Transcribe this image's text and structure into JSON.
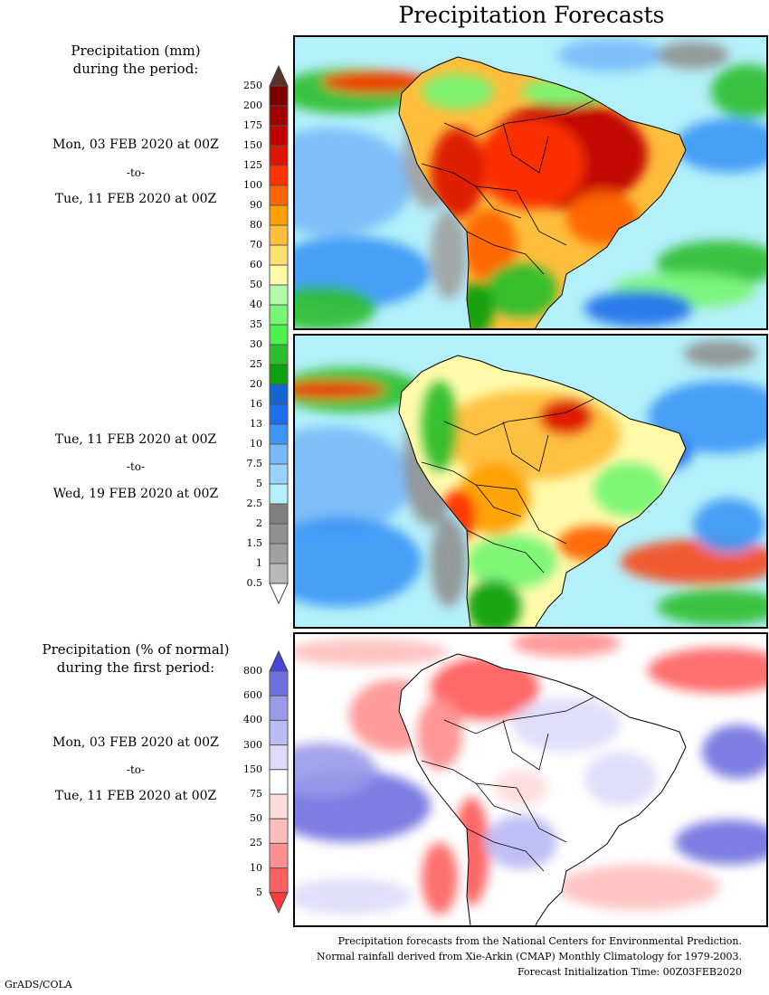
{
  "title": "Precipitation Forecasts",
  "legend_mm": {
    "heading": [
      "Precipitation (mm)",
      "during the period:"
    ],
    "labels": [
      "250",
      "200",
      "175",
      "150",
      "125",
      "100",
      "90",
      "80",
      "70",
      "60",
      "50",
      "40",
      "35",
      "30",
      "25",
      "20",
      "16",
      "13",
      "10",
      "7.5",
      "5",
      "2.5",
      "2",
      "1.5",
      "1",
      "0.5"
    ],
    "colors": [
      "#7a0000",
      "#a00000",
      "#c00000",
      "#dc1400",
      "#ff3200",
      "#ff6400",
      "#ffa000",
      "#ffbe3c",
      "#ffe070",
      "#fffaaa",
      "#b4faaa",
      "#78f573",
      "#50f050",
      "#2dbe2d",
      "#0fa00f",
      "#1464d2",
      "#1e6eeb",
      "#3c96f5",
      "#78b9fa",
      "#96d2fa",
      "#b4f0fa",
      "#808080",
      "#909090",
      "#a0a0a0",
      "#b8b8b8"
    ],
    "top_triangle_color": "#5a3228",
    "bottom_triangle_color": "#ffffff"
  },
  "legend_pct": {
    "heading": [
      "Precipitation (% of normal)",
      "during the first period:"
    ],
    "labels": [
      "800",
      "600",
      "400",
      "300",
      "150",
      "75",
      "50",
      "25",
      "10",
      "5"
    ],
    "colors": [
      "#7070e0",
      "#9a9aeb",
      "#bcbcf5",
      "#dcdcfa",
      "#ffffff",
      "#ffdcdc",
      "#ffbebe",
      "#ff9090",
      "#ff6060"
    ],
    "top_triangle_color": "#4646dc",
    "bottom_triangle_color": "#ff3c3c"
  },
  "periods": [
    {
      "start": "Mon, 03 FEB 2020 at 00Z",
      "sep": "-to-",
      "end": "Tue, 11 FEB 2020 at 00Z"
    },
    {
      "start": "Tue, 11 FEB 2020 at 00Z",
      "sep": "-to-",
      "end": "Wed, 19 FEB 2020 at 00Z"
    },
    {
      "start": "Mon, 03 FEB 2020 at 00Z",
      "sep": "-to-",
      "end": "Tue, 11 FEB 2020 at 00Z"
    }
  ],
  "footer": [
    "Precipitation forecasts from the National Centers for Environmental Prediction.",
    "Normal rainfall derived from Xie-Arkin (CMAP) Monthly Climatology for 1979-2003.",
    "Forecast Initialization Time: 00Z03FEB2020"
  ],
  "credit": "GrADS/COLA"
}
